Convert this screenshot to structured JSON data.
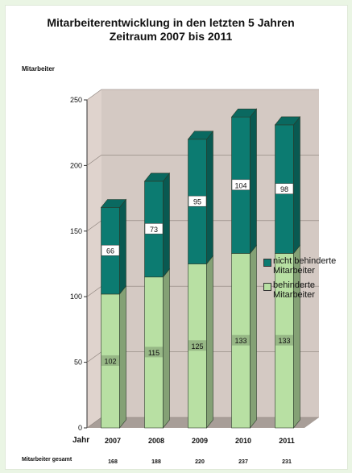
{
  "colors": {
    "page_background": "#eaf5e4",
    "plot_back_wall": "#d4c9c3",
    "plot_floor": "#a89e98",
    "nicht_behinderte": "#0c7b71",
    "behinderte": "#b8e0a3"
  },
  "chart_data": {
    "type": "bar",
    "stacked": true,
    "three_d": true,
    "title": "Mitarbeiterentwicklung in den letzten 5 Jahren",
    "subtitle": "Zeitraum 2007 bis 2011",
    "ylabel": "Mitarbeiter",
    "xlabel": "Jahr",
    "ylim": [
      0,
      250
    ],
    "yticks": [
      0,
      50,
      100,
      150,
      200,
      250
    ],
    "categories": [
      "2007",
      "2008",
      "2009",
      "2010",
      "2011"
    ],
    "series": [
      {
        "name": "behinderte Mitarbeiter",
        "values": [
          102,
          115,
          125,
          133,
          133
        ]
      },
      {
        "name": "nicht behinderte Mitarbeiter",
        "values": [
          66,
          73,
          95,
          104,
          98
        ]
      }
    ],
    "legend_position": "right",
    "totals_label": "Mitarbeiter gesamt",
    "totals": [
      168,
      188,
      220,
      237,
      231
    ]
  }
}
